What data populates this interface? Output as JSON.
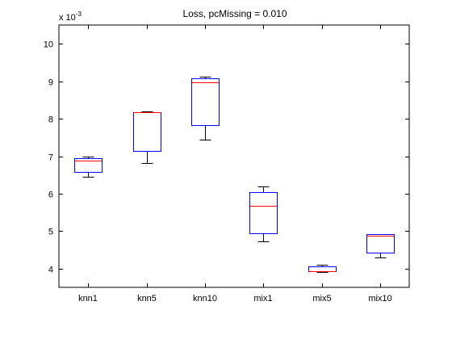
{
  "chart_data": {
    "type": "box",
    "title": "Loss, pcMissing = 0.010",
    "xlabel": "",
    "ylabel": "",
    "y_exponent_label": "x 10",
    "y_exponent_power": "-3",
    "ylim": [
      3.5,
      10.5
    ],
    "yticks": [
      4,
      5,
      6,
      7,
      8,
      9,
      10
    ],
    "grid": false,
    "categories": [
      "knn1",
      "knn5",
      "knn10",
      "mix1",
      "mix5",
      "mix10"
    ],
    "boxes": [
      {
        "min": 6.45,
        "q1": 6.57,
        "median": 6.88,
        "q3": 6.94,
        "max": 6.98
      },
      {
        "min": 6.82,
        "q1": 7.15,
        "median": 8.17,
        "q3": 8.17,
        "max": 8.2
      },
      {
        "min": 7.45,
        "q1": 7.83,
        "median": 8.97,
        "q3": 9.08,
        "max": 9.12
      },
      {
        "min": 4.72,
        "q1": 4.95,
        "median": 5.67,
        "q3": 6.04,
        "max": 6.19
      },
      {
        "min": 3.9,
        "q1": 3.93,
        "median": 3.93,
        "q3": 4.06,
        "max": 4.1
      },
      {
        "min": 4.3,
        "q1": 4.42,
        "median": 4.87,
        "q3": 4.92,
        "max": 4.92
      }
    ],
    "colors": {
      "box": "#0000ff",
      "median": "#ff0000",
      "whisker": "#000000",
      "axes": "#000000"
    }
  }
}
